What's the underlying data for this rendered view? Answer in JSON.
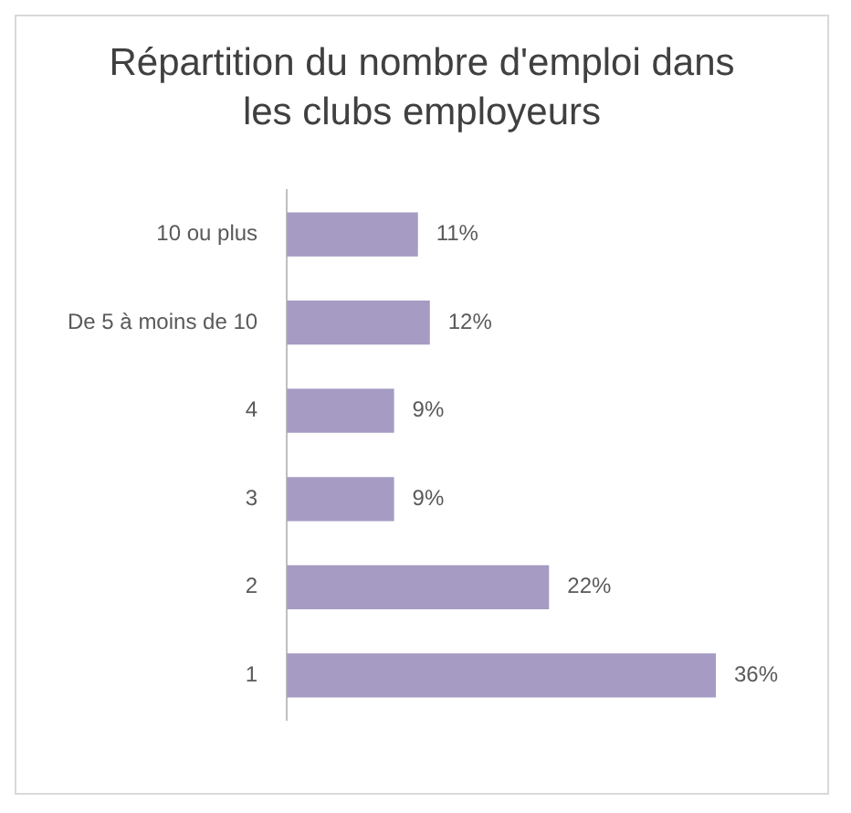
{
  "chart_data": {
    "type": "bar",
    "orientation": "horizontal",
    "title": "Répartition du nombre d'emploi dans les clubs employeurs",
    "categories": [
      "10 ou plus",
      "De 5 à moins de 10",
      "4",
      "3",
      "2",
      "1"
    ],
    "values": [
      11,
      12,
      9,
      9,
      22,
      36
    ],
    "value_labels": [
      "11%",
      "12%",
      "9%",
      "9%",
      "22%",
      "36%"
    ],
    "color": "#a59bc3",
    "legend": false
  }
}
